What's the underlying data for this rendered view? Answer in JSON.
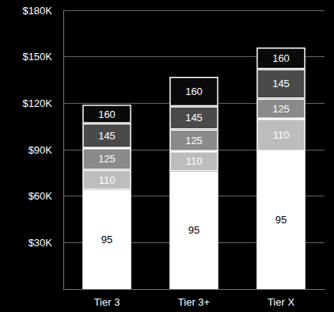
{
  "chart_data": {
    "type": "bar",
    "stacked": true,
    "grid": true,
    "categories": [
      "Tier 3",
      "Tier 3+",
      "Tier X"
    ],
    "series": [
      {
        "name": "95",
        "color": "#ffffff",
        "values": [
          64000,
          76000,
          89000
        ]
      },
      {
        "name": "110",
        "color": "#bdbdbd",
        "values": [
          13000,
          13000,
          21000
        ]
      },
      {
        "name": "125",
        "color": "#8a8a8a",
        "values": [
          14000,
          14000,
          13000
        ]
      },
      {
        "name": "145",
        "color": "#4a4a4a",
        "values": [
          16000,
          15000,
          19000
        ]
      },
      {
        "name": "160",
        "color": "#0a0a0a",
        "values": [
          12000,
          19000,
          14000
        ]
      }
    ],
    "ylim": [
      0,
      180000
    ],
    "yticks": [
      {
        "value": 30000,
        "label": "$30K"
      },
      {
        "value": 60000,
        "label": "$60K"
      },
      {
        "value": 90000,
        "label": "$90K"
      },
      {
        "value": 120000,
        "label": "$120K"
      },
      {
        "value": 150000,
        "label": "$150K"
      },
      {
        "value": 180000,
        "label": "$180K"
      }
    ]
  }
}
